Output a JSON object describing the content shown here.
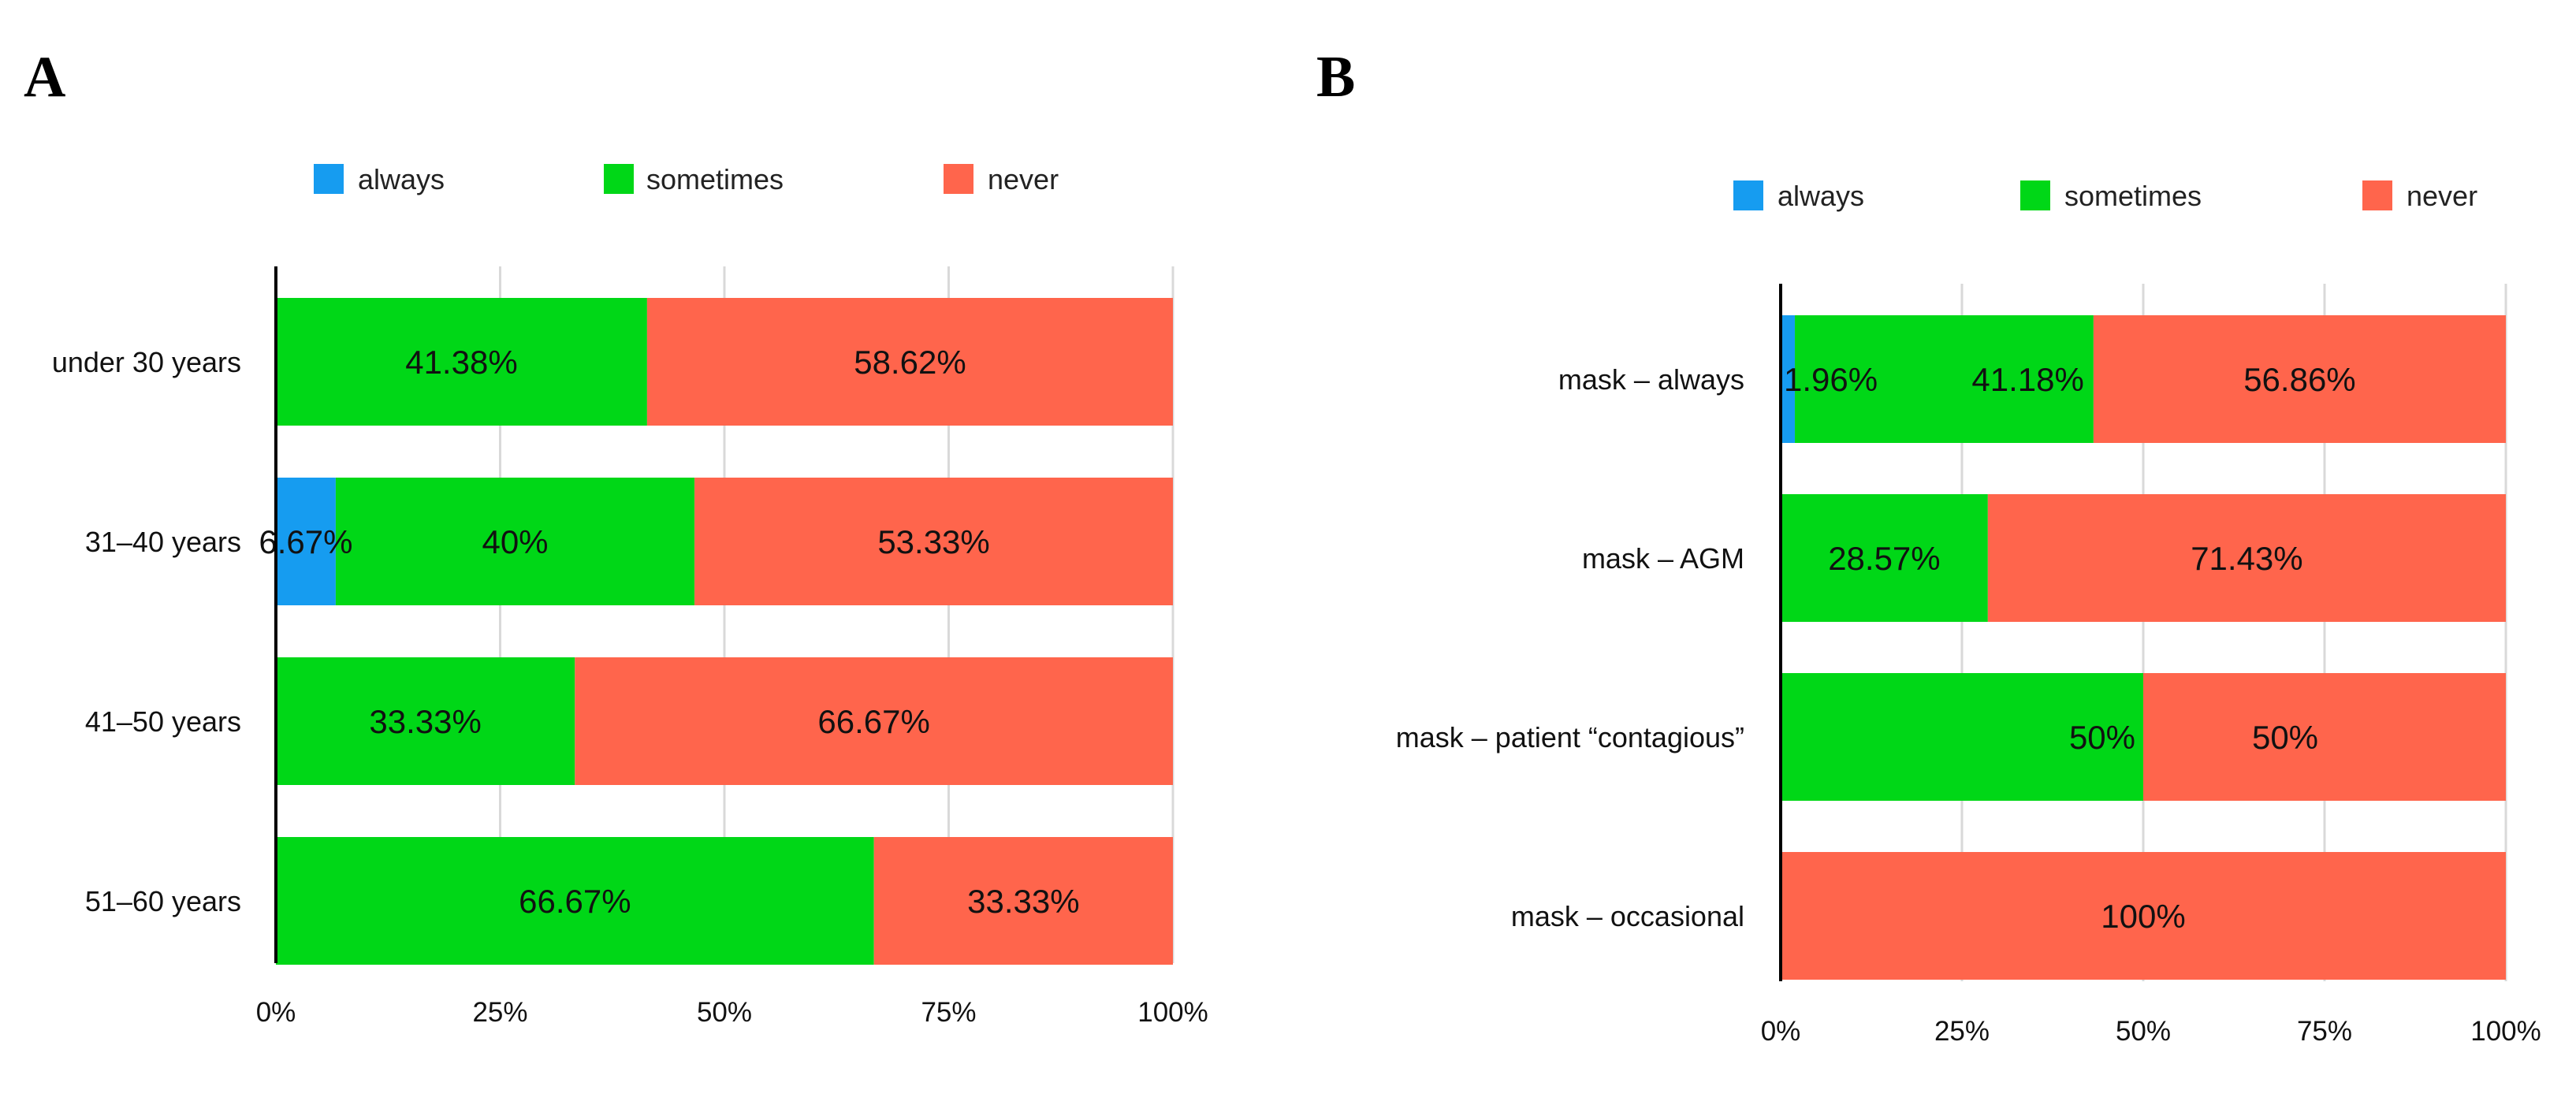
{
  "panels": [
    {
      "letter": "A"
    },
    {
      "letter": "B"
    }
  ],
  "legend": [
    {
      "label": "always",
      "color": "#169CF0"
    },
    {
      "label": "sometimes",
      "color": "#00D717"
    },
    {
      "label": "never",
      "color": "#FF654C"
    }
  ],
  "chart_data": [
    {
      "type": "bar",
      "orientation": "horizontal",
      "stacked": "percent",
      "panel": "A",
      "categories": [
        "under 30 years",
        "31–40 years",
        "41–50 years",
        "51–60 years"
      ],
      "series": [
        {
          "name": "always",
          "color": "#169CF0",
          "values": [
            0,
            6.67,
            0,
            0
          ],
          "labels": [
            "",
            "6.67%",
            "",
            ""
          ]
        },
        {
          "name": "sometimes",
          "color": "#00D717",
          "values": [
            41.38,
            40,
            33.33,
            66.67
          ],
          "labels": [
            "41.38%",
            "40%",
            "33.33%",
            "66.67%"
          ]
        },
        {
          "name": "never",
          "color": "#FF654C",
          "values": [
            58.62,
            53.33,
            66.67,
            33.33
          ],
          "labels": [
            "58.62%",
            "53.33%",
            "66.67%",
            "33.33%"
          ]
        }
      ],
      "xlim": [
        0,
        100
      ],
      "xticks": [
        "0%",
        "25%",
        "50%",
        "75%",
        "100%"
      ],
      "grid": true,
      "legend_position": "top"
    },
    {
      "type": "bar",
      "orientation": "horizontal",
      "stacked": "percent",
      "panel": "B",
      "categories": [
        "mask – always",
        "mask – AGM",
        "mask – patient “contagious”",
        "mask – occasional"
      ],
      "series": [
        {
          "name": "always",
          "color": "#169CF0",
          "values": [
            1.96,
            0,
            0,
            0
          ],
          "labels": [
            "1.96%",
            "",
            "",
            ""
          ]
        },
        {
          "name": "sometimes",
          "color": "#00D717",
          "values": [
            41.18,
            28.57,
            50,
            0
          ],
          "labels": [
            "41.18%",
            "28.57%",
            "50%",
            ""
          ]
        },
        {
          "name": "never",
          "color": "#FF654C",
          "values": [
            56.86,
            71.43,
            50,
            100
          ],
          "labels": [
            "56.86%",
            "71.43%",
            "50%",
            "100%"
          ]
        }
      ],
      "xlim": [
        0,
        100
      ],
      "xticks": [
        "0%",
        "25%",
        "50%",
        "75%",
        "100%"
      ],
      "grid": true,
      "legend_position": "top"
    }
  ]
}
